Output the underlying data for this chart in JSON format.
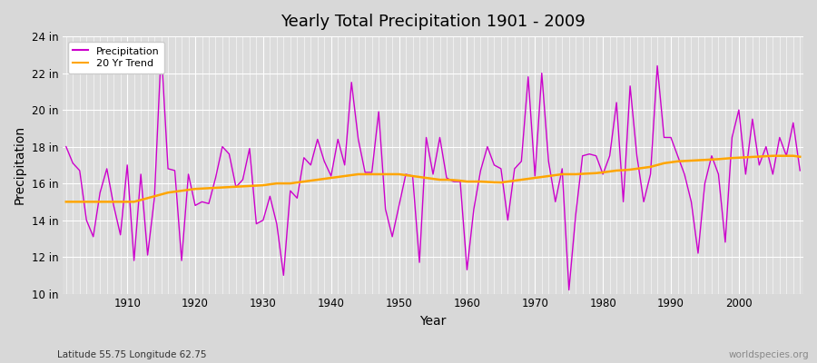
{
  "title": "Yearly Total Precipitation 1901 - 2009",
  "xlabel": "Year",
  "ylabel": "Precipitation",
  "subtitle": "Latitude 55.75 Longitude 62.75",
  "watermark": "worldspecies.org",
  "fig_bg_color": "#d8d8d8",
  "plot_bg_color": "#dcdcdc",
  "precip_color": "#cc00cc",
  "trend_color": "#FFA500",
  "ylim": [
    10,
    24
  ],
  "yticks": [
    10,
    12,
    14,
    16,
    18,
    20,
    22,
    24
  ],
  "ytick_labels": [
    "10 in",
    "12 in",
    "14 in",
    "16 in",
    "18 in",
    "20 in",
    "22 in",
    "24 in"
  ],
  "xticks": [
    1910,
    1920,
    1930,
    1940,
    1950,
    1960,
    1970,
    1980,
    1990,
    2000
  ],
  "years": [
    1901,
    1902,
    1903,
    1904,
    1905,
    1906,
    1907,
    1908,
    1909,
    1910,
    1911,
    1912,
    1913,
    1914,
    1915,
    1916,
    1917,
    1918,
    1919,
    1920,
    1921,
    1922,
    1923,
    1924,
    1925,
    1926,
    1927,
    1928,
    1929,
    1930,
    1931,
    1932,
    1933,
    1934,
    1935,
    1936,
    1937,
    1938,
    1939,
    1940,
    1941,
    1942,
    1943,
    1944,
    1945,
    1946,
    1947,
    1948,
    1949,
    1950,
    1951,
    1952,
    1953,
    1954,
    1955,
    1956,
    1957,
    1958,
    1959,
    1960,
    1961,
    1962,
    1963,
    1964,
    1965,
    1966,
    1967,
    1968,
    1969,
    1970,
    1971,
    1972,
    1973,
    1974,
    1975,
    1976,
    1977,
    1978,
    1979,
    1980,
    1981,
    1982,
    1983,
    1984,
    1985,
    1986,
    1987,
    1988,
    1989,
    1990,
    1991,
    1992,
    1993,
    1994,
    1995,
    1996,
    1997,
    1998,
    1999,
    2000,
    2001,
    2002,
    2003,
    2004,
    2005,
    2006,
    2007,
    2008,
    2009
  ],
  "precip": [
    18.0,
    17.1,
    16.7,
    14.0,
    13.1,
    15.5,
    16.8,
    14.8,
    13.2,
    17.0,
    11.8,
    16.5,
    12.1,
    15.2,
    23.3,
    16.8,
    16.7,
    11.8,
    16.5,
    14.8,
    15.0,
    14.9,
    16.3,
    18.0,
    17.6,
    15.8,
    16.2,
    17.9,
    13.8,
    14.0,
    15.3,
    13.8,
    11.0,
    15.6,
    15.2,
    17.4,
    17.0,
    18.4,
    17.2,
    16.4,
    18.4,
    17.0,
    21.5,
    18.4,
    16.6,
    16.6,
    19.9,
    14.6,
    13.1,
    14.8,
    16.5,
    16.4,
    11.7,
    18.5,
    16.5,
    18.5,
    16.3,
    16.1,
    16.1,
    11.3,
    14.6,
    16.7,
    18.0,
    17.0,
    16.8,
    14.0,
    16.8,
    17.2,
    21.8,
    16.4,
    22.0,
    17.2,
    15.0,
    16.8,
    10.2,
    14.3,
    17.5,
    17.6,
    17.5,
    16.5,
    17.5,
    20.4,
    15.0,
    21.3,
    17.5,
    15.0,
    16.5,
    22.4,
    18.5,
    18.5,
    17.5,
    16.5,
    15.0,
    12.2,
    16.0,
    17.5,
    16.5,
    12.8,
    18.5,
    20.0,
    16.5,
    19.5,
    17.0,
    18.0,
    16.5,
    18.5,
    17.5,
    19.3,
    16.7
  ],
  "trend": [
    15.0,
    15.0,
    15.0,
    15.0,
    15.0,
    15.0,
    15.0,
    15.0,
    15.0,
    15.0,
    15.0,
    15.1,
    15.2,
    15.3,
    15.4,
    15.5,
    15.55,
    15.6,
    15.65,
    15.7,
    15.72,
    15.74,
    15.76,
    15.78,
    15.8,
    15.82,
    15.84,
    15.86,
    15.88,
    15.9,
    15.95,
    16.0,
    16.0,
    16.0,
    16.05,
    16.1,
    16.15,
    16.2,
    16.25,
    16.3,
    16.35,
    16.4,
    16.45,
    16.5,
    16.5,
    16.5,
    16.5,
    16.5,
    16.5,
    16.5,
    16.45,
    16.4,
    16.35,
    16.3,
    16.25,
    16.2,
    16.2,
    16.18,
    16.15,
    16.1,
    16.1,
    16.1,
    16.08,
    16.06,
    16.05,
    16.1,
    16.15,
    16.2,
    16.25,
    16.3,
    16.35,
    16.4,
    16.45,
    16.5,
    16.5,
    16.5,
    16.52,
    16.54,
    16.56,
    16.6,
    16.65,
    16.7,
    16.72,
    16.75,
    16.8,
    16.85,
    16.9,
    17.0,
    17.1,
    17.15,
    17.2,
    17.22,
    17.24,
    17.26,
    17.28,
    17.3,
    17.32,
    17.35,
    17.38,
    17.4,
    17.42,
    17.44,
    17.46,
    17.48,
    17.5,
    17.5,
    17.5,
    17.5,
    17.45
  ]
}
